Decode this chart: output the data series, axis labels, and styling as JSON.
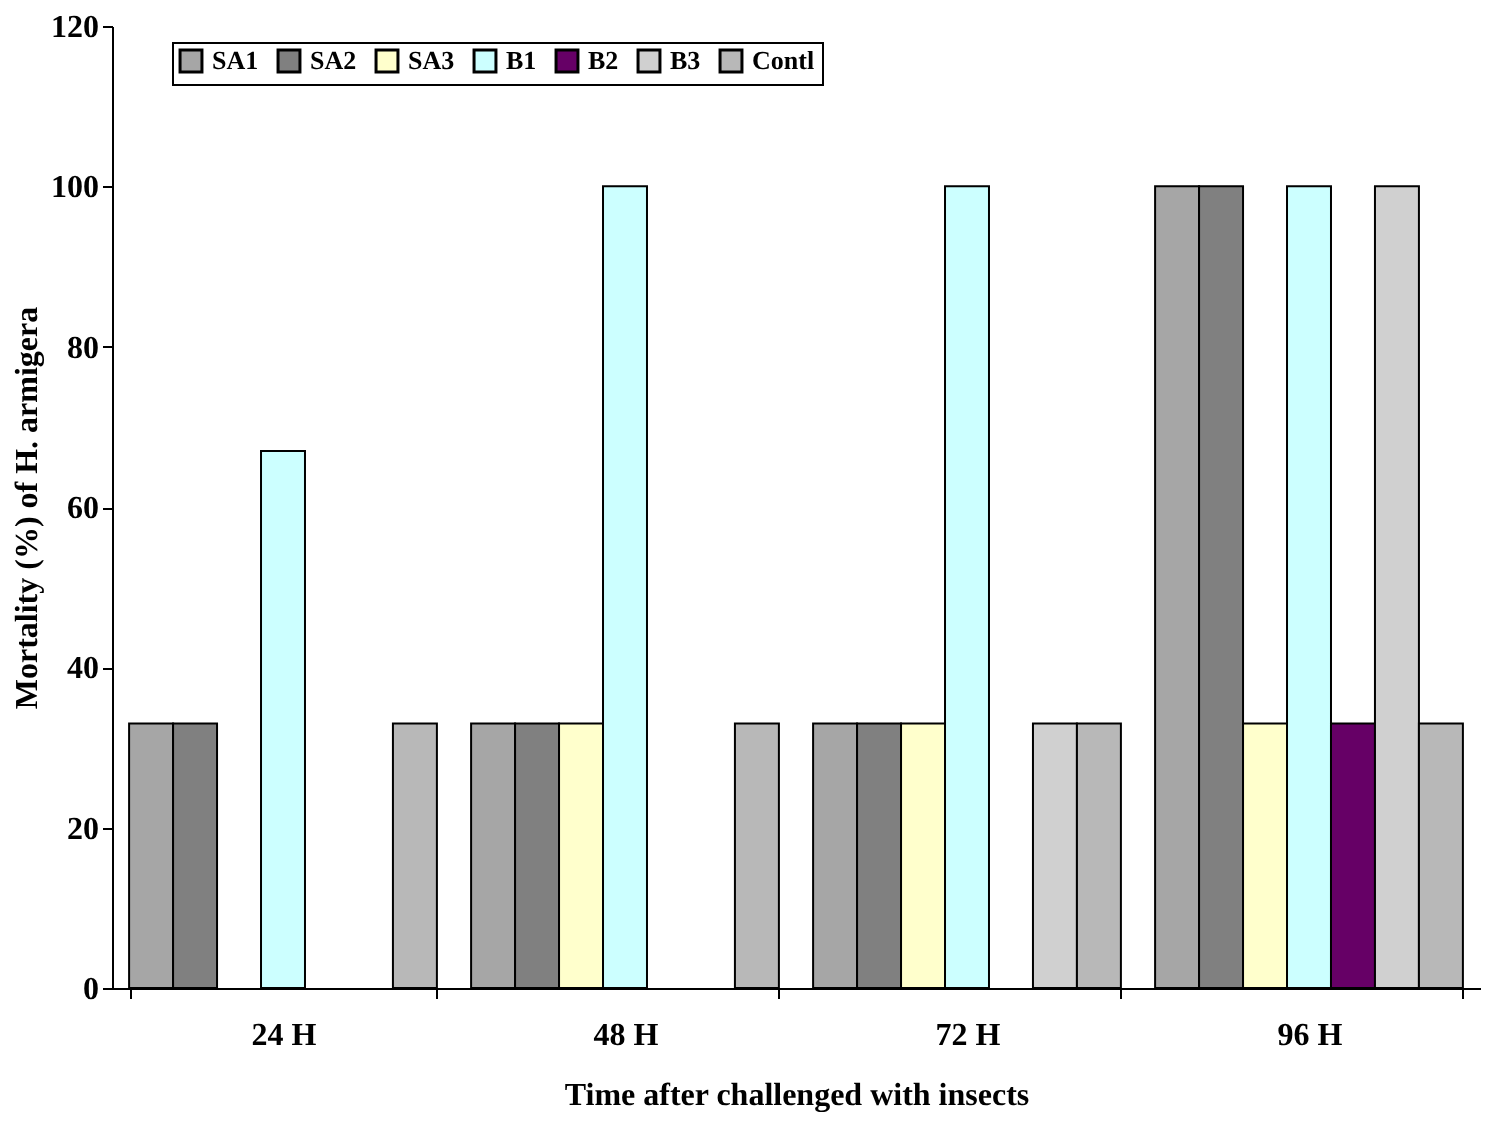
{
  "chart_data": {
    "type": "bar",
    "xlabel": "Time after challenged with insects",
    "ylabel": "Mortality (%) of H. armigera",
    "categories": [
      "24 H",
      "48 H",
      "72 H",
      "96 H"
    ],
    "series": [
      {
        "name": "SA1",
        "color": "#a6a6a6",
        "values": [
          33,
          33,
          33,
          100
        ]
      },
      {
        "name": "SA2",
        "color": "#808080",
        "values": [
          33,
          33,
          33,
          100
        ]
      },
      {
        "name": "SA3",
        "color": "#ffffcc",
        "values": [
          0,
          33,
          33,
          33
        ]
      },
      {
        "name": "B1",
        "color": "#ccffff",
        "values": [
          67,
          100,
          100,
          100
        ]
      },
      {
        "name": "B2",
        "color": "#660066",
        "values": [
          0,
          0,
          0,
          33
        ]
      },
      {
        "name": "B3",
        "color": "#d0d0d0",
        "values": [
          0,
          0,
          33,
          100
        ]
      },
      {
        "name": "Contl",
        "color": "#b8b8b8",
        "values": [
          33,
          33,
          33,
          33
        ]
      }
    ],
    "ylim": [
      0,
      120
    ],
    "yticks": [
      0,
      20,
      40,
      60,
      80,
      100,
      120
    ],
    "grid": false,
    "legend": "top"
  }
}
